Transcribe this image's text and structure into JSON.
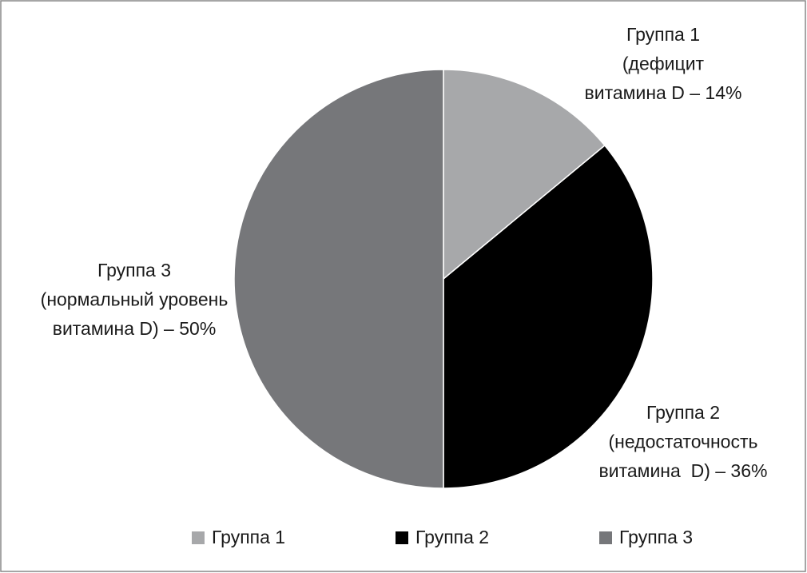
{
  "chart_data": {
    "type": "pie",
    "categories": [
      "Группа 1",
      "Группа 2",
      "Группа 3"
    ],
    "values": [
      14,
      36,
      50
    ],
    "value_labels": [
      [
        "Группа 1",
        "(дефицит",
        "витамина D – 14%"
      ],
      [
        "Группа 2",
        "(недостаточность",
        "витамина  D) – 36%"
      ],
      [
        "Группа 3",
        "(нормальный уровень",
        "витамина D) – 50%"
      ]
    ],
    "colors": [
      "#a7a8aa",
      "#000000",
      "#76777a"
    ],
    "legend": "bottom"
  }
}
